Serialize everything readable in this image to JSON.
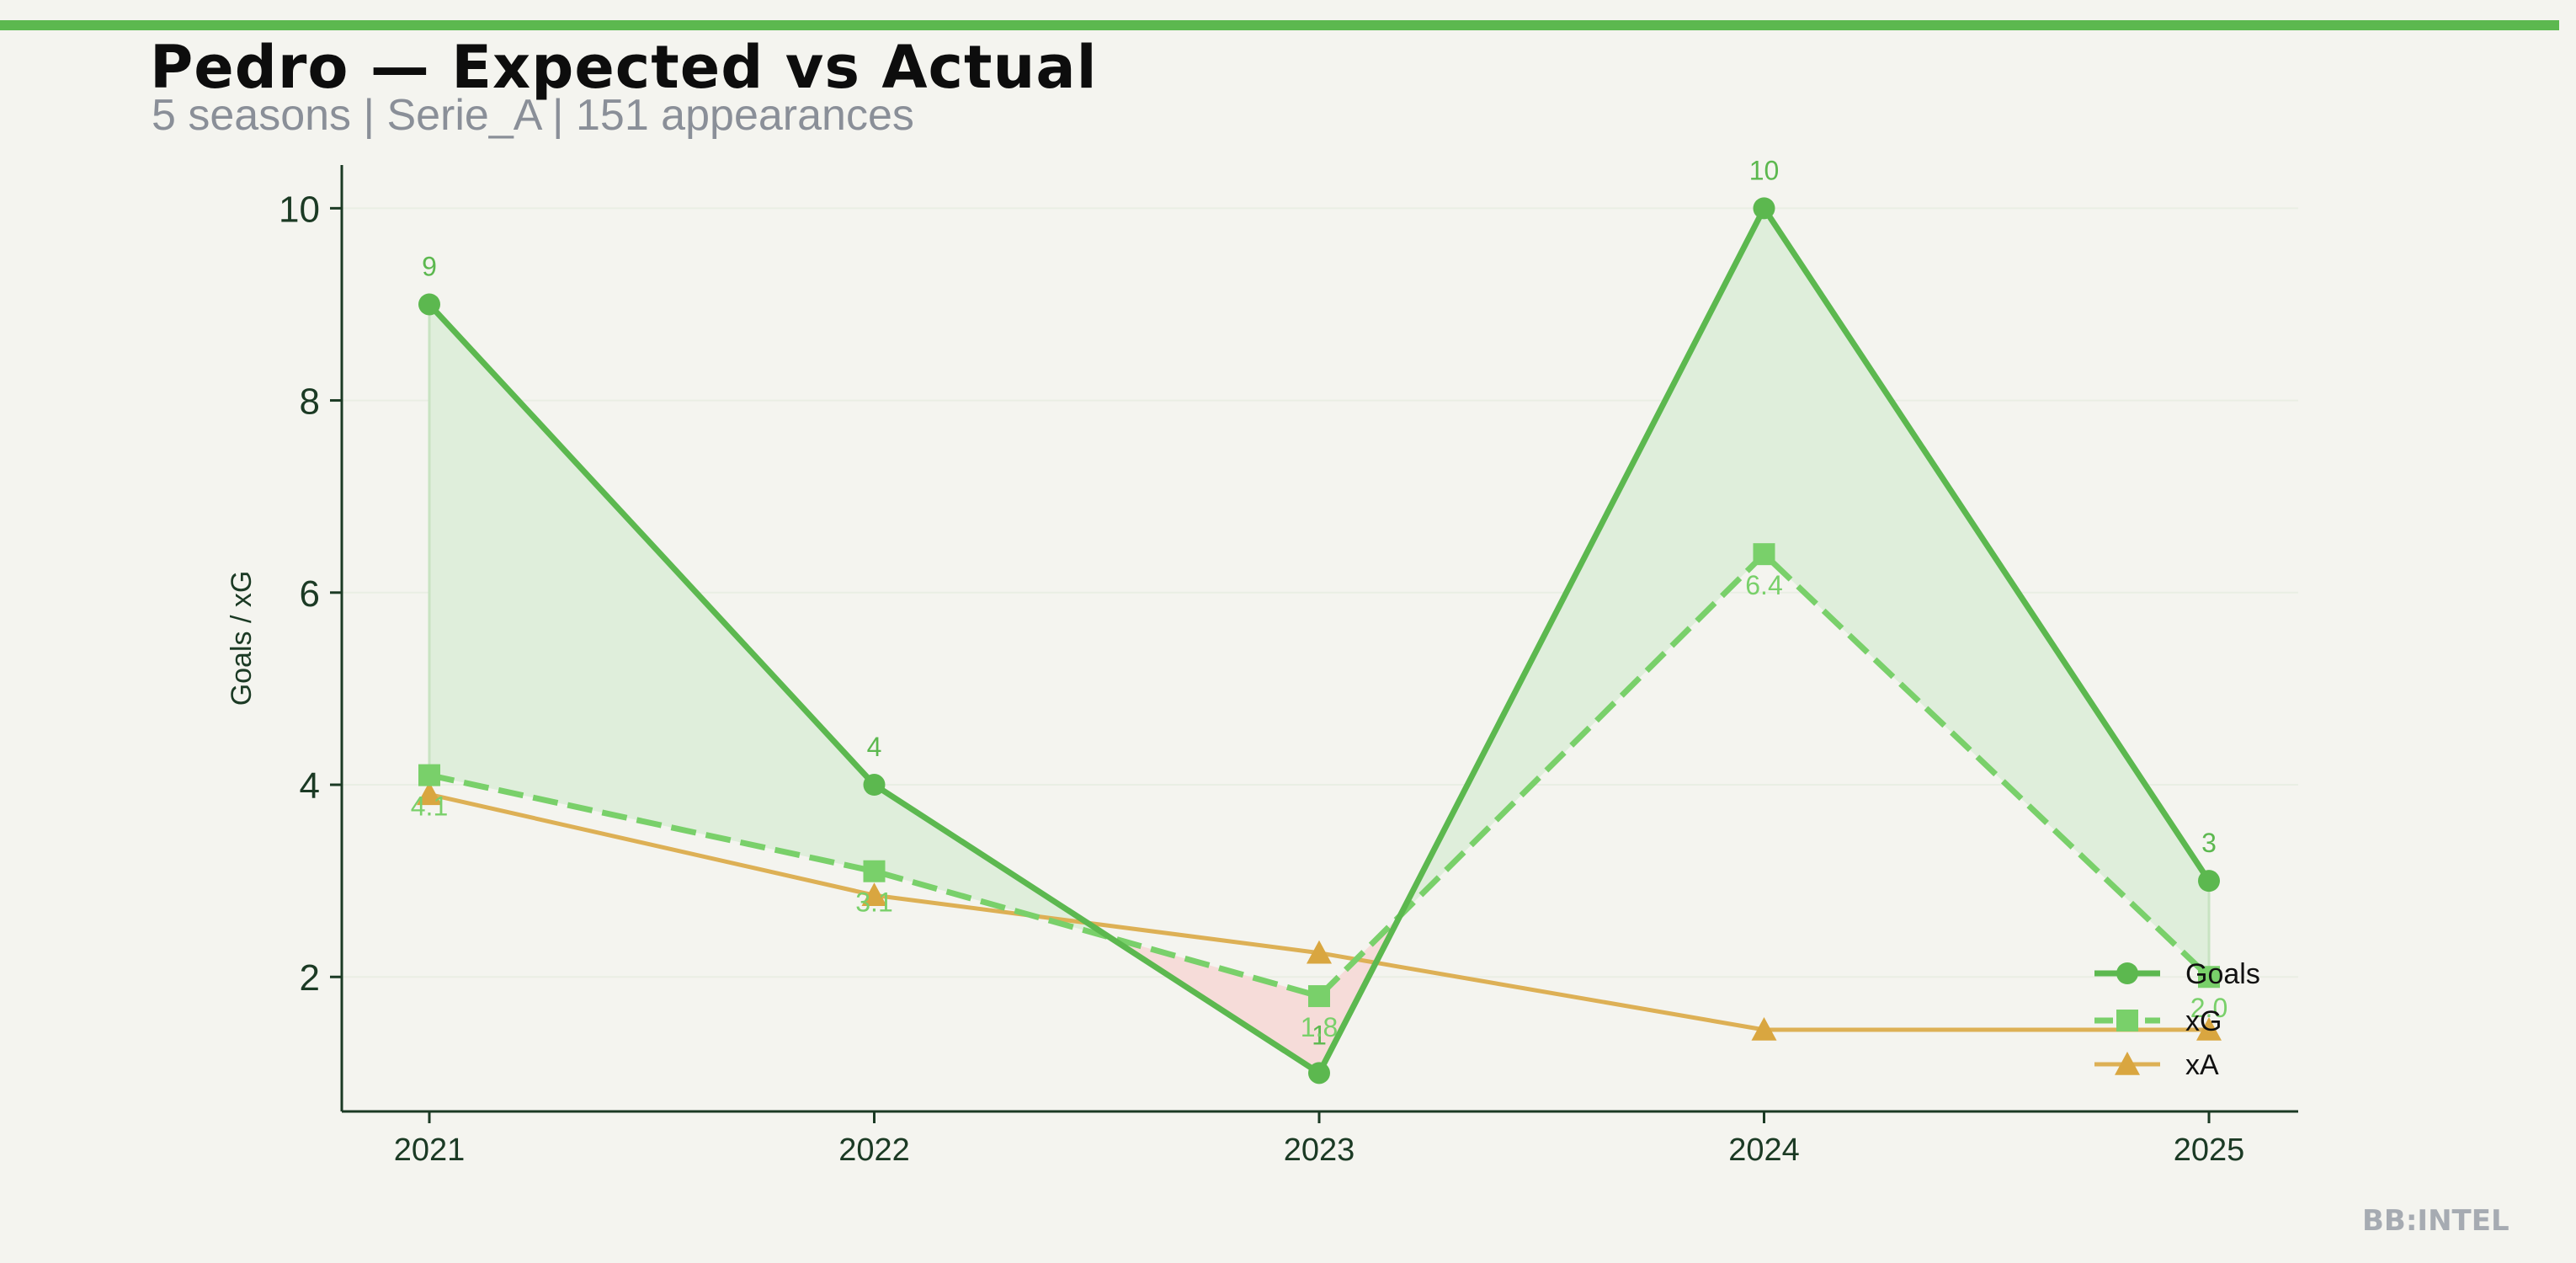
{
  "header": {
    "title": "Pedro — Expected vs Actual",
    "subtitle": "5 seasons | Serie_A | 151 appearances"
  },
  "brand": {
    "watermark": "BB:INTEL"
  },
  "colors": {
    "accent": "#5cb84f",
    "goals": "#5cb84f",
    "xg": "#79d06a",
    "xa": "#ddb055",
    "xa_marker": "#d9a640",
    "over_fill": "#dfeedb",
    "under_fill": "#f6dcd9",
    "axis": "#1b3a24",
    "background": "#f4f4ef"
  },
  "chart_data": {
    "type": "line",
    "x": [
      "2021",
      "2022",
      "2023",
      "2024",
      "2025"
    ],
    "ylabel": "Goals / xG",
    "xlabel": "",
    "ylim": [
      0.6,
      10.45
    ],
    "yticks": [
      2,
      4,
      6,
      8,
      10
    ],
    "grid": true,
    "legend_position": "bottom-right",
    "series": [
      {
        "name": "Goals",
        "values": [
          9,
          4,
          1,
          10,
          3
        ],
        "labels": [
          "9",
          "4",
          "1",
          "10",
          "3"
        ],
        "marker": "circle",
        "style": "solid"
      },
      {
        "name": "xG",
        "values": [
          4.1,
          3.1,
          1.8,
          6.4,
          2.0
        ],
        "labels": [
          "4.1",
          "3.1",
          "1.8",
          "6.4",
          "2.0"
        ],
        "marker": "square",
        "style": "dashed"
      },
      {
        "name": "xA",
        "values": [
          3.9,
          2.85,
          2.25,
          1.45,
          1.45
        ],
        "marker": "triangle",
        "style": "solid"
      }
    ]
  }
}
